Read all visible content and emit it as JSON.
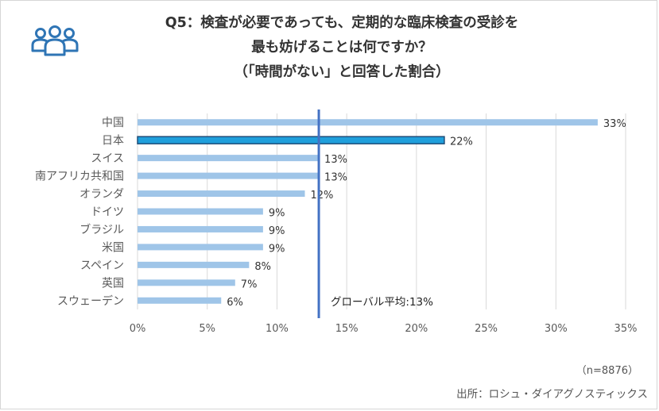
{
  "chart_data": {
    "type": "bar",
    "orientation": "horizontal",
    "title": [
      "Q5：検査が必要であっても、定期的な臨床検査の受診を",
      "最も妨げることは何ですか？",
      "（「時間がない」と回答した割合）"
    ],
    "categories": [
      "中国",
      "日本",
      "スイス",
      "南アフリカ共和国",
      "オランダ",
      "ドイツ",
      "ブラジル",
      "米国",
      "スペイン",
      "英国",
      "スウェーデン"
    ],
    "values": [
      33,
      22,
      13,
      13,
      12,
      9,
      9,
      9,
      8,
      7,
      6
    ],
    "value_labels": [
      "33%",
      "22%",
      "13%",
      "13%",
      "12%",
      "9%",
      "9%",
      "9%",
      "8%",
      "7%",
      "6%"
    ],
    "highlight": "日本",
    "x_ticks": [
      0,
      5,
      10,
      15,
      20,
      25,
      30,
      35
    ],
    "x_tick_labels": [
      "0%",
      "5%",
      "10%",
      "15%",
      "20%",
      "25%",
      "30%",
      "35%"
    ],
    "xlim": [
      0,
      35
    ],
    "average": {
      "value": 13,
      "label": "グローバル平均:13%"
    },
    "grid": true,
    "colors": {
      "bar": "#9fc5e8",
      "highlight": "#1f9fdc",
      "highlight_border": "#1f4e79",
      "average_line": "#4472c4",
      "grid": "#d9d9d9",
      "icon": "#2f75b5"
    }
  },
  "footer": {
    "sample": "（n=8876）",
    "source": "出所：ロシュ・ダイアグノスティックス"
  }
}
